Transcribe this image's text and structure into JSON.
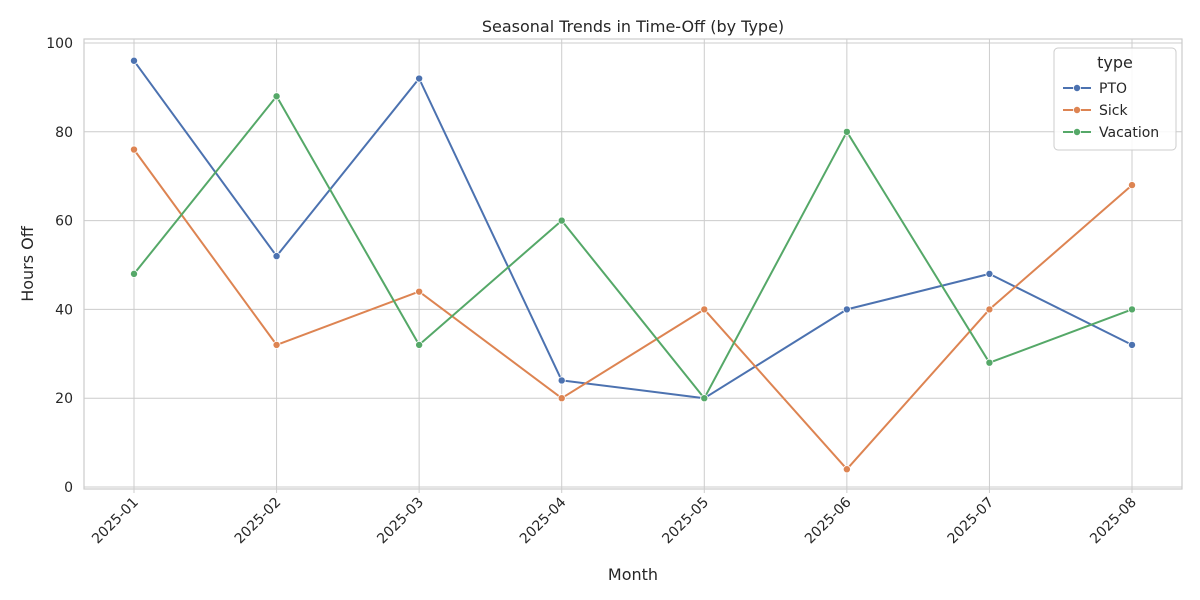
{
  "chart_data": {
    "type": "line",
    "title": "Seasonal Trends in Time-Off (by Type)",
    "xlabel": "Month",
    "ylabel": "Hours Off",
    "categories": [
      "2025-01",
      "2025-02",
      "2025-03",
      "2025-04",
      "2025-05",
      "2025-06",
      "2025-07",
      "2025-08"
    ],
    "ylim": [
      0,
      100
    ],
    "yticks": [
      0,
      20,
      40,
      60,
      80,
      100
    ],
    "grid": true,
    "legend_title": "type",
    "legend_position": "top-right",
    "series": [
      {
        "name": "PTO",
        "color": "#4c72b0",
        "values": [
          96,
          52,
          92,
          24,
          20,
          40,
          48,
          32
        ]
      },
      {
        "name": "Sick",
        "color": "#dd8452",
        "values": [
          76,
          32,
          44,
          20,
          40,
          4,
          40,
          68
        ]
      },
      {
        "name": "Vacation",
        "color": "#55a868",
        "values": [
          48,
          88,
          32,
          60,
          20,
          80,
          28,
          40
        ]
      }
    ]
  }
}
